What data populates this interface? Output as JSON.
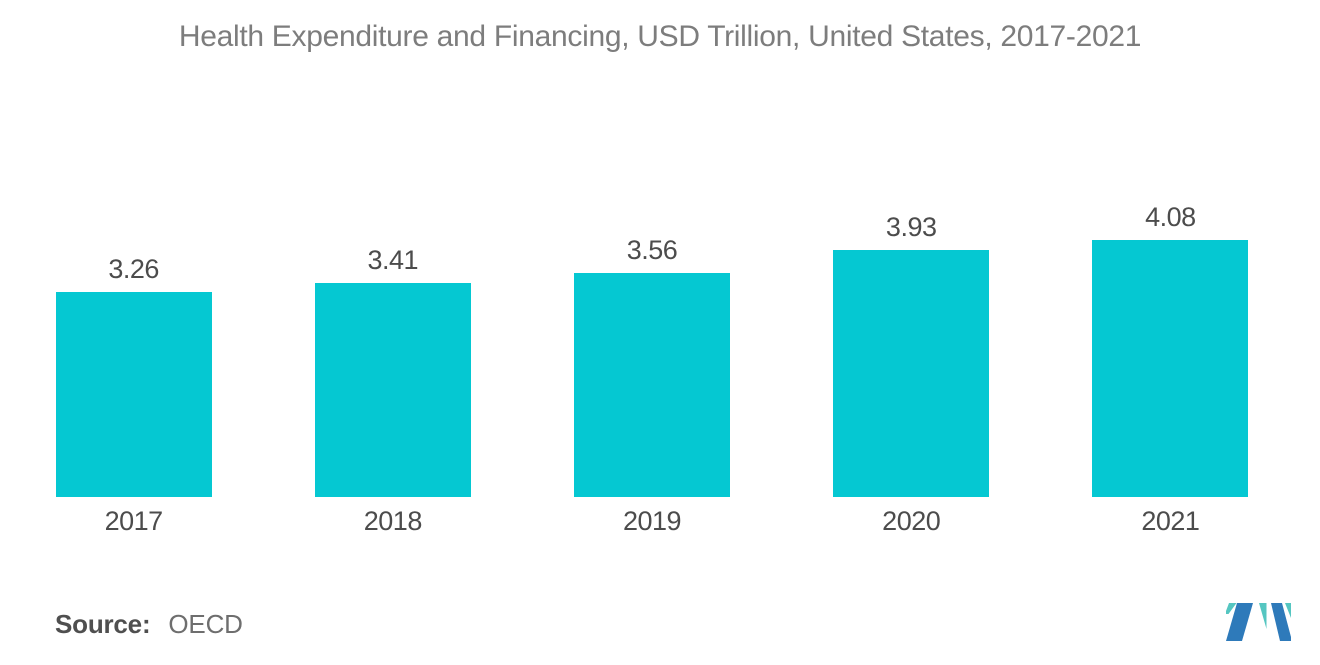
{
  "chart_data": {
    "type": "bar",
    "title": "Health Expenditure and Financing, USD Trillion, United States, 2017-2021",
    "categories": [
      "2017",
      "2018",
      "2019",
      "2020",
      "2021"
    ],
    "values": [
      3.26,
      3.41,
      3.56,
      3.93,
      4.08
    ],
    "value_labels": [
      "3.26",
      "3.41",
      "3.56",
      "3.93",
      "4.08"
    ],
    "series_name": "Health Expenditure and Financing (USD Trillion)",
    "xlabel": "",
    "ylabel": "",
    "ylim": [
      0,
      4.3
    ],
    "grid": false,
    "legend": "none",
    "axes_style": "no axis lines or ticks; value labels printed above each bar",
    "bar_color": "#05C8D2",
    "title_color": "#7D7D7D",
    "label_color": "#4C4C4C"
  },
  "source": {
    "label": "Source:",
    "value": "OECD"
  },
  "logo": {
    "name": "mordor-intelligence-logomark",
    "blue": "#2E7ABA",
    "teal": "#55C6C1"
  },
  "page": {
    "background": "#FFFFFF"
  }
}
